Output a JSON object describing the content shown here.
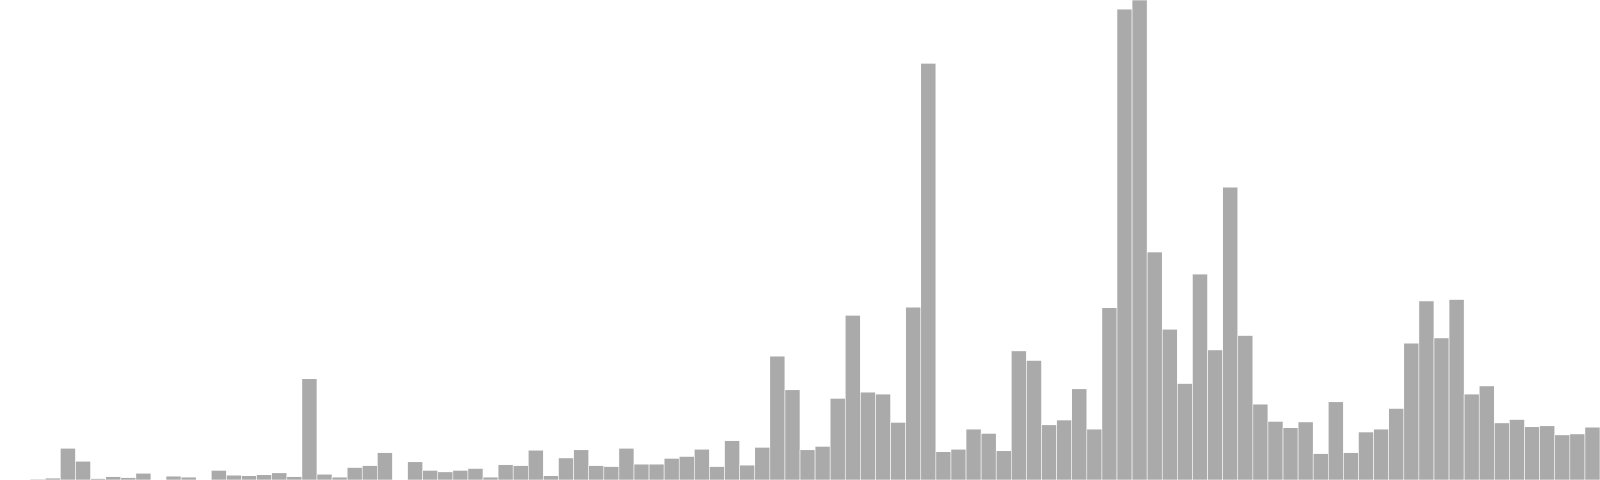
{
  "chart_data": {
    "type": "bar",
    "title": "",
    "xlabel": "",
    "ylabel": "",
    "grid": false,
    "legend": "none",
    "bar_color": "#aaaaaa",
    "ylim": [
      0,
      100
    ],
    "values": [
      0.1,
      0.1,
      0.2,
      0.4,
      6.6,
      3.9,
      0.3,
      0.7,
      0.5,
      1.4,
      0.1,
      0.8,
      0.6,
      0,
      2.0,
      1.0,
      0.9,
      1.1,
      1.5,
      0.7,
      21.1,
      1.2,
      0.6,
      2.6,
      3.0,
      5.7,
      0,
      3.8,
      2.0,
      1.7,
      2.0,
      2.4,
      0.6,
      3.2,
      3.0,
      6.2,
      0.9,
      4.6,
      6.3,
      3.0,
      2.8,
      6.6,
      3.3,
      3.3,
      4.5,
      4.9,
      6.4,
      2.8,
      8.2,
      3.1,
      6.8,
      25.8,
      18.8,
      6.3,
      7.0,
      17.0,
      34.3,
      18.3,
      17.9,
      12.0,
      36.0,
      86.8,
      5.9,
      6.4,
      10.6,
      9.7,
      6.1,
      26.9,
      24.9,
      11.5,
      12.5,
      19.0,
      10.6,
      35.9,
      98.1,
      100,
      47.5,
      31.4,
      20.1,
      42.9,
      27.1,
      61.0,
      30.1,
      15.8,
      12.2,
      10.9,
      12.1,
      5.5,
      16.3,
      5.7,
      10.0,
      10.6,
      14.9,
      28.5,
      37.3,
      29.6,
      37.6,
      17.9,
      19.6,
      11.9,
      12.6,
      11.1,
      11.3,
      9.4,
      9.6,
      11.0
    ]
  }
}
